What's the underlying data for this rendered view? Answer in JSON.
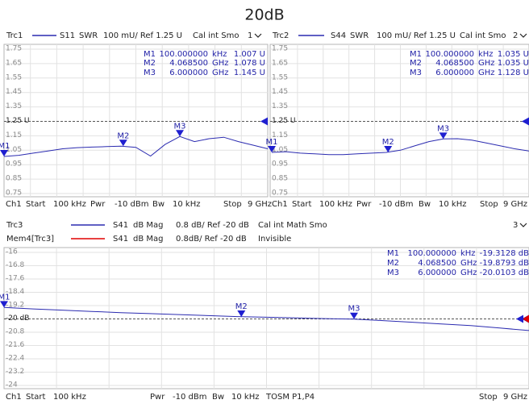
{
  "title": "20dB",
  "chart_data": [
    {
      "type": "line",
      "series": [
        {
          "name": "Trc1",
          "color": "#2b2bb0",
          "values": [
            1.007,
            1.015,
            1.03,
            1.045,
            1.06,
            1.068,
            1.072,
            1.075,
            1.078,
            1.07,
            1.01,
            1.09,
            1.145,
            1.11,
            1.13,
            1.14,
            1.11,
            1.085,
            1.06
          ]
        }
      ],
      "header": [
        "S11",
        "SWR",
        "100 mU/ Ref 1.25 U",
        "Cal int Smo",
        "1"
      ],
      "x": [
        0.0001,
        0.5,
        1,
        1.5,
        2,
        2.5,
        3,
        3.5,
        4,
        4.5,
        5,
        5.5,
        6,
        6.5,
        7,
        7.5,
        8,
        8.5,
        9
      ],
      "xlim": [
        0.0001,
        9
      ],
      "ylim": [
        0.75,
        1.75
      ],
      "yticks": [
        1.75,
        1.65,
        1.55,
        1.45,
        1.35,
        {
          "value": 1.25,
          "label": "1.25 U"
        },
        1.15,
        1.05,
        0.95,
        0.85,
        0.75
      ],
      "grid": true,
      "markers": [
        {
          "name": "M1",
          "x": 0.0001,
          "x_label": "100.000000",
          "x_unit": "kHz",
          "value": 1.007,
          "value_label": "1.007 U"
        },
        {
          "name": "M2",
          "x": 4.0685,
          "x_label": "4.068500",
          "x_unit": "GHz",
          "value": 1.078,
          "value_label": "1.078 U"
        },
        {
          "name": "M3",
          "x": 6,
          "x_label": "6.000000",
          "x_unit": "GHz",
          "value": 1.145,
          "value_label": "1.145 U"
        }
      ],
      "footer": [
        "Ch1",
        "Start",
        "100 kHz",
        "Pwr",
        "-10 dBm",
        "Bw",
        "10 kHz",
        "Stop",
        "9 GHz"
      ]
    },
    {
      "type": "line",
      "series": [
        {
          "name": "Trc2",
          "color": "#2b2bb0",
          "values": [
            1.035,
            1.04,
            1.03,
            1.025,
            1.02,
            1.02,
            1.025,
            1.03,
            1.035,
            1.05,
            1.08,
            1.11,
            1.128,
            1.13,
            1.12,
            1.1,
            1.08,
            1.06,
            1.045
          ]
        }
      ],
      "header": [
        "S44",
        "SWR",
        "100 mU/ Ref 1.25 U",
        "Cal int Smo",
        "2"
      ],
      "x": [
        0.0001,
        0.5,
        1,
        1.5,
        2,
        2.5,
        3,
        3.5,
        4,
        4.5,
        5,
        5.5,
        6,
        6.5,
        7,
        7.5,
        8,
        8.5,
        9
      ],
      "xlim": [
        0.0001,
        9
      ],
      "ylim": [
        0.75,
        1.75
      ],
      "yticks": [
        1.75,
        1.65,
        1.55,
        1.45,
        1.35,
        {
          "value": 1.25,
          "label": "1.25 U"
        },
        1.15,
        1.05,
        0.95,
        0.85,
        0.75
      ],
      "grid": true,
      "markers": [
        {
          "name": "M1",
          "x": 0.0001,
          "x_label": "100.000000",
          "x_unit": "kHz",
          "value": 1.035,
          "value_label": "1.035 U"
        },
        {
          "name": "M2",
          "x": 4.0685,
          "x_label": "4.068500",
          "x_unit": "GHz",
          "value": 1.035,
          "value_label": "1.035 U"
        },
        {
          "name": "M3",
          "x": 6,
          "x_label": "6.000000",
          "x_unit": "GHz",
          "value": 1.128,
          "value_label": "1.128 U"
        }
      ],
      "footer": [
        "Ch1",
        "Start",
        "100 kHz",
        "Pwr",
        "-10 dBm",
        "Bw",
        "10 kHz",
        "Stop",
        "9 GHz"
      ]
    },
    {
      "type": "line",
      "series": [
        {
          "name": "Trc3",
          "color": "#2b2bb0",
          "values": [
            -19.3128,
            -19.4,
            -19.47,
            -19.55,
            -19.62,
            -19.68,
            -19.74,
            -19.8,
            -19.86,
            -19.9,
            -19.94,
            -19.98,
            -20.01,
            -20.1,
            -20.2,
            -20.3,
            -20.4,
            -20.55,
            -20.7
          ]
        }
      ],
      "header": [
        "S41",
        "dB Mag",
        "0.8 dB/ Ref -20 dB",
        "Cal int Math Smo",
        "3"
      ],
      "memory": {
        "name": "Mem4[Trc3]",
        "color": "#e00000",
        "info": [
          "S41",
          "dB Mag",
          "0.8dB/ Ref -20 dB",
          "Invisible"
        ]
      },
      "x": [
        0.0001,
        0.5,
        1,
        1.5,
        2,
        2.5,
        3,
        3.5,
        4,
        4.5,
        5,
        5.5,
        6,
        6.5,
        7,
        7.5,
        8,
        8.5,
        9
      ],
      "xlim": [
        0.0001,
        9
      ],
      "ylim": [
        -24,
        -16
      ],
      "yticks": [
        -16,
        -16.8,
        -17.6,
        -18.4,
        -19.2,
        {
          "value": -20,
          "label": "-20 dB"
        },
        -20.8,
        -21.6,
        -22.4,
        -23.2,
        -24
      ],
      "grid": true,
      "markers": [
        {
          "name": "M1",
          "x": 0.0001,
          "x_label": "100.000000",
          "x_unit": "kHz",
          "value": -19.3128,
          "value_label": "-19.3128 dB"
        },
        {
          "name": "M2",
          "x": 4.0685,
          "x_label": "4.068500",
          "x_unit": "GHz",
          "value": -19.8793,
          "value_label": "-19.8793 dB"
        },
        {
          "name": "M3",
          "x": 6,
          "x_label": "6.000000",
          "x_unit": "GHz",
          "value": -20.0103,
          "value_label": "-20.0103 dB"
        }
      ],
      "footer": [
        "Ch1",
        "Start",
        "100 kHz",
        "Pwr",
        "-10 dBm",
        "Bw",
        "10 kHz",
        "TOSM P1,P4",
        "Stop",
        "9 GHz"
      ]
    }
  ]
}
